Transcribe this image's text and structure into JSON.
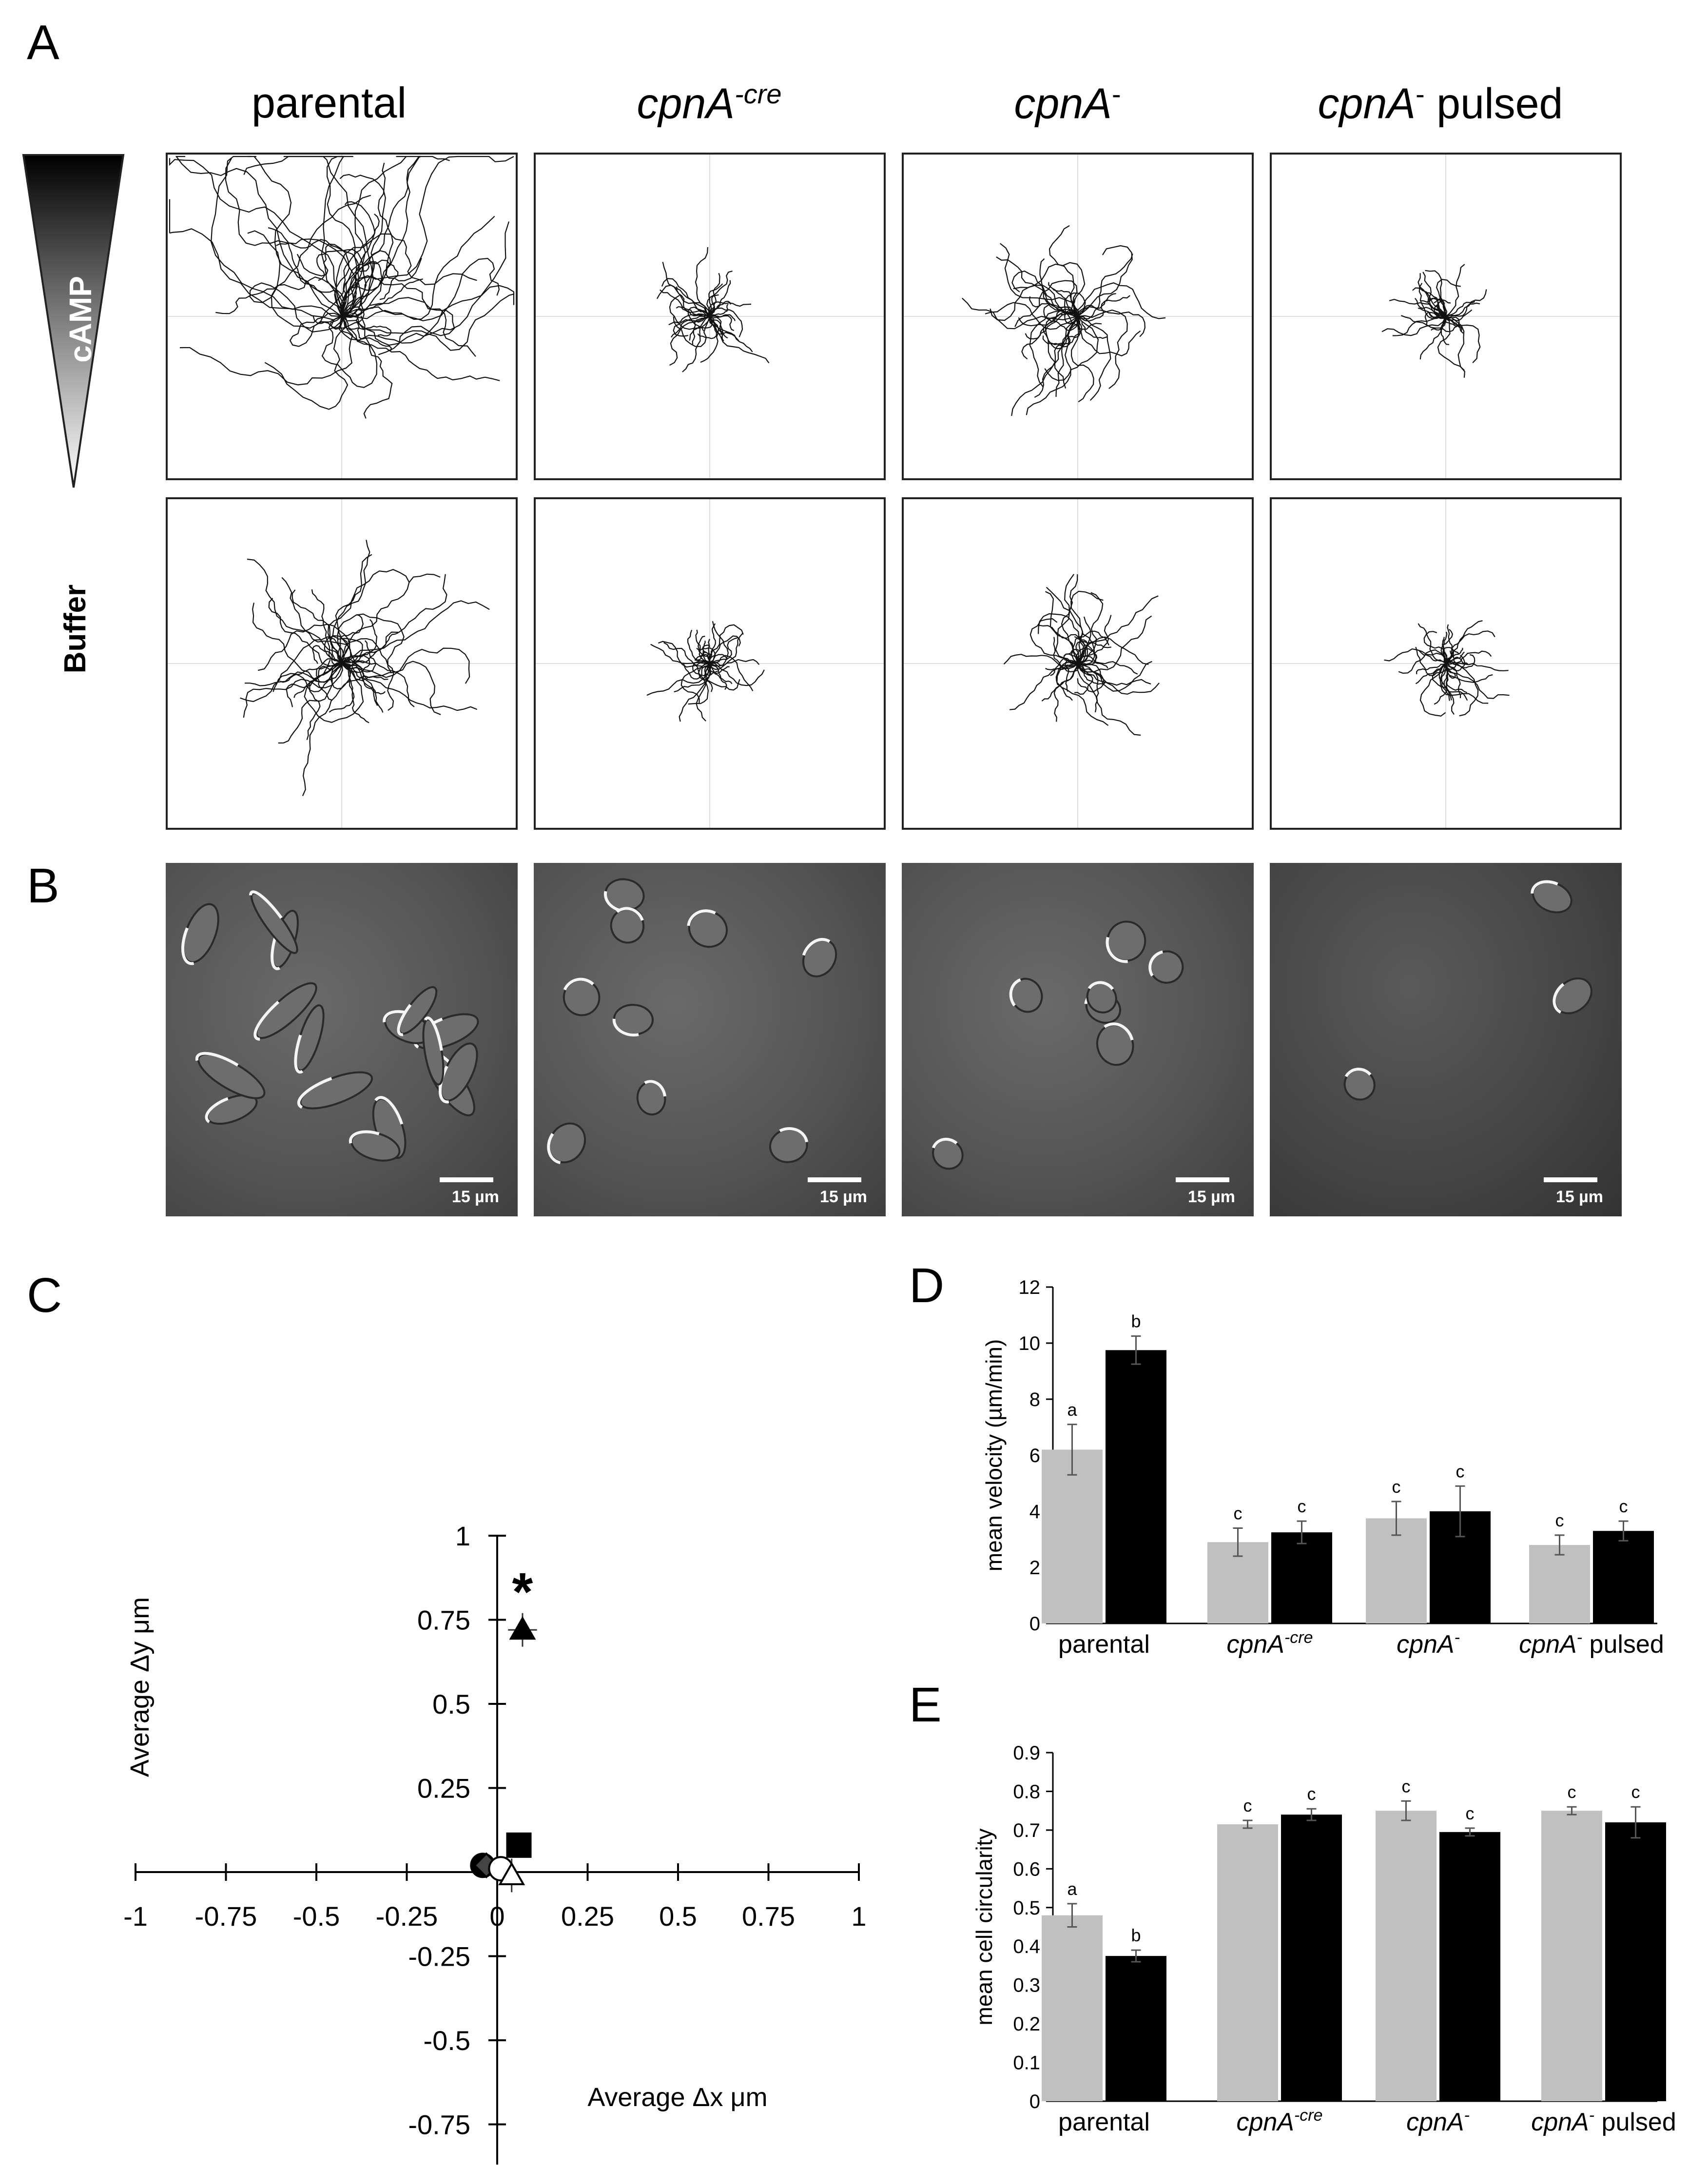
{
  "panels": {
    "A": "A",
    "B": "B",
    "C": "C",
    "D": "D",
    "E": "E"
  },
  "panel_a": {
    "columns": [
      {
        "label": "parental",
        "italic": false,
        "sup": "",
        "suffix": ""
      },
      {
        "label": "cpnA",
        "italic": true,
        "sup": "-cre",
        "suffix": ""
      },
      {
        "label": "cpnA",
        "italic": true,
        "sup": "-",
        "suffix": ""
      },
      {
        "label": "cpnA",
        "italic": true,
        "sup": "-",
        "suffix": " pulsed"
      }
    ],
    "row_labels": {
      "camp": "cAMP",
      "buffer": "Buffer"
    },
    "gradient_colors": [
      "#000000",
      "#ffffff"
    ]
  },
  "panel_b": {
    "scale_label": "15 µm"
  },
  "chart_data": [
    {
      "panel": "C",
      "type": "scatter",
      "title": "",
      "xlabel": "Average Δx μm",
      "ylabel": "Average Δy μm",
      "xlim": [
        -1,
        1
      ],
      "ylim": [
        -1,
        1
      ],
      "xticks": [
        "-1",
        "-0.75",
        "-0.5",
        "-0.25",
        "0",
        "0.25",
        "0.5",
        "0.75",
        "1"
      ],
      "yticks": [
        "1",
        "0.75",
        "0.5",
        "0.25",
        "0",
        "-0.25",
        "-0.5",
        "-0.75",
        "-1"
      ],
      "annotation": "*",
      "points": [
        {
          "marker": "triangle-filled",
          "x": 0.07,
          "y": 0.72,
          "xerr": 0.04,
          "yerr": 0.05
        },
        {
          "marker": "square-filled",
          "x": 0.06,
          "y": 0.08,
          "xerr": 0.02,
          "yerr": 0.02
        },
        {
          "marker": "circle-filled",
          "x": -0.04,
          "y": 0.02,
          "xerr": 0.01,
          "yerr": 0.01
        },
        {
          "marker": "diamond-filled",
          "x": -0.03,
          "y": 0.02,
          "xerr": 0.01,
          "yerr": 0.01
        },
        {
          "marker": "circle-open",
          "x": 0.01,
          "y": 0.01,
          "xerr": 0.01,
          "yerr": 0.02
        },
        {
          "marker": "triangle-open",
          "x": 0.04,
          "y": -0.01,
          "xerr": 0.01,
          "yerr": 0.05
        }
      ]
    },
    {
      "panel": "D",
      "type": "bar",
      "title": "",
      "ylabel": "mean velocity (µm/min)",
      "ylim": [
        0,
        12
      ],
      "yticks": [
        "0",
        "2",
        "4",
        "6",
        "8",
        "10",
        "12"
      ],
      "categories": [
        {
          "label": "cpnA",
          "sup": "",
          "suffix": "",
          "plain": "parental"
        },
        {
          "label": "cpnA",
          "sup": "-cre",
          "suffix": ""
        },
        {
          "label": "cpnA",
          "sup": "-",
          "suffix": ""
        },
        {
          "label": "cpnA",
          "sup": "-",
          "suffix": " pulsed"
        }
      ],
      "series": [
        {
          "color": "#c0c0c0",
          "values": [
            6.2,
            2.9,
            3.75,
            2.8
          ],
          "errors": [
            0.9,
            0.5,
            0.6,
            0.35
          ],
          "letters": [
            "a",
            "c",
            "c",
            "c"
          ]
        },
        {
          "color": "#000000",
          "values": [
            9.75,
            3.25,
            4.0,
            3.3
          ],
          "errors": [
            0.5,
            0.4,
            0.9,
            0.35
          ],
          "letters": [
            "b",
            "c",
            "c",
            "c"
          ]
        }
      ]
    },
    {
      "panel": "E",
      "type": "bar",
      "title": "",
      "ylabel": "mean cell circularity",
      "ylim": [
        0,
        0.9
      ],
      "yticks": [
        "0",
        "0.1",
        "0.2",
        "0.3",
        "0.4",
        "0.5",
        "0.6",
        "0.7",
        "0.8",
        "0.9"
      ],
      "categories": [
        {
          "label": "cpnA",
          "sup": "",
          "suffix": "",
          "plain": "parental"
        },
        {
          "label": "cpnA",
          "sup": "-cre",
          "suffix": ""
        },
        {
          "label": "cpnA",
          "sup": "-",
          "suffix": ""
        },
        {
          "label": "cpnA",
          "sup": "-",
          "suffix": " pulsed"
        }
      ],
      "series": [
        {
          "color": "#c0c0c0",
          "values": [
            0.48,
            0.715,
            0.75,
            0.75
          ],
          "errors": [
            0.03,
            0.01,
            0.025,
            0.01
          ],
          "letters": [
            "a",
            "c",
            "c",
            "c"
          ]
        },
        {
          "color": "#000000",
          "values": [
            0.375,
            0.74,
            0.695,
            0.72
          ],
          "errors": [
            0.015,
            0.015,
            0.01,
            0.04
          ],
          "letters": [
            "b",
            "c",
            "c",
            "c"
          ]
        }
      ]
    }
  ]
}
